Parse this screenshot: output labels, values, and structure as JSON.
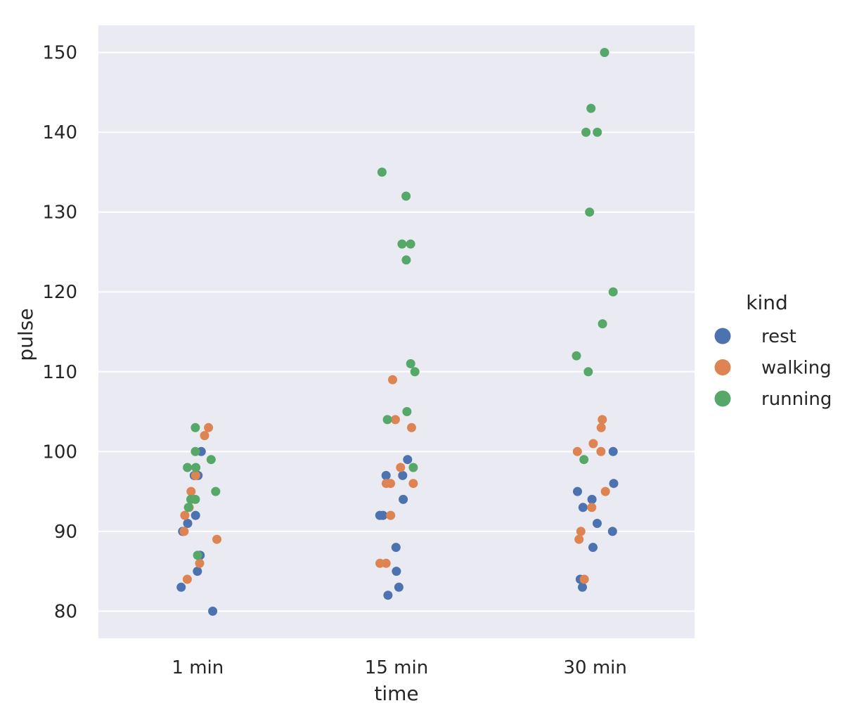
{
  "chart_data": {
    "type": "scatter",
    "title": "",
    "xlabel": "time",
    "ylabel": "pulse",
    "categories": [
      "1 min",
      "15 min",
      "30 min"
    ],
    "yticks": [
      80,
      90,
      100,
      110,
      120,
      130,
      140,
      150
    ],
    "ylim": [
      76.6,
      153.4
    ],
    "grid": true,
    "legend": {
      "title": "kind",
      "placement": "right"
    },
    "series": [
      {
        "name": "rest",
        "color": "#4c72b0",
        "points": [
          {
            "x": "1 min",
            "y": 85
          },
          {
            "x": "1 min",
            "y": 87
          },
          {
            "x": "1 min",
            "y": 90
          },
          {
            "x": "1 min",
            "y": 91
          },
          {
            "x": "1 min",
            "y": 92
          },
          {
            "x": "1 min",
            "y": 97
          },
          {
            "x": "1 min",
            "y": 83
          },
          {
            "x": "1 min",
            "y": 80
          },
          {
            "x": "1 min",
            "y": 100
          },
          {
            "x": "1 min",
            "y": 97
          },
          {
            "x": "15 min",
            "y": 82
          },
          {
            "x": "15 min",
            "y": 99
          },
          {
            "x": "15 min",
            "y": 97
          },
          {
            "x": "15 min",
            "y": 92
          },
          {
            "x": "15 min",
            "y": 85
          },
          {
            "x": "15 min",
            "y": 97
          },
          {
            "x": "15 min",
            "y": 94
          },
          {
            "x": "15 min",
            "y": 92
          },
          {
            "x": "15 min",
            "y": 83
          },
          {
            "x": "15 min",
            "y": 88
          },
          {
            "x": "30 min",
            "y": 83
          },
          {
            "x": "30 min",
            "y": 95
          },
          {
            "x": "30 min",
            "y": 90
          },
          {
            "x": "30 min",
            "y": 96
          },
          {
            "x": "30 min",
            "y": 84
          },
          {
            "x": "30 min",
            "y": 88
          },
          {
            "x": "30 min",
            "y": 100
          },
          {
            "x": "30 min",
            "y": 93
          },
          {
            "x": "30 min",
            "y": 94
          },
          {
            "x": "30 min",
            "y": 91
          }
        ]
      },
      {
        "name": "walking",
        "color": "#dd8452",
        "points": [
          {
            "x": "1 min",
            "y": 102
          },
          {
            "x": "1 min",
            "y": 93
          },
          {
            "x": "1 min",
            "y": 92
          },
          {
            "x": "1 min",
            "y": 89
          },
          {
            "x": "1 min",
            "y": 97
          },
          {
            "x": "1 min",
            "y": 84
          },
          {
            "x": "1 min",
            "y": 86
          },
          {
            "x": "1 min",
            "y": 95
          },
          {
            "x": "1 min",
            "y": 90
          },
          {
            "x": "1 min",
            "y": 103
          },
          {
            "x": "15 min",
            "y": 92
          },
          {
            "x": "15 min",
            "y": 96
          },
          {
            "x": "15 min",
            "y": 86
          },
          {
            "x": "15 min",
            "y": 96
          },
          {
            "x": "15 min",
            "y": 96
          },
          {
            "x": "15 min",
            "y": 103
          },
          {
            "x": "15 min",
            "y": 104
          },
          {
            "x": "15 min",
            "y": 86
          },
          {
            "x": "15 min",
            "y": 98
          },
          {
            "x": "15 min",
            "y": 109
          },
          {
            "x": "30 min",
            "y": 95
          },
          {
            "x": "30 min",
            "y": 103
          },
          {
            "x": "30 min",
            "y": 90
          },
          {
            "x": "30 min",
            "y": 84
          },
          {
            "x": "30 min",
            "y": 101
          },
          {
            "x": "30 min",
            "y": 89
          },
          {
            "x": "30 min",
            "y": 100
          },
          {
            "x": "30 min",
            "y": 93
          },
          {
            "x": "30 min",
            "y": 104
          },
          {
            "x": "30 min",
            "y": 100
          }
        ]
      },
      {
        "name": "running",
        "color": "#55a868",
        "points": [
          {
            "x": "1 min",
            "y": 95
          },
          {
            "x": "1 min",
            "y": 94
          },
          {
            "x": "1 min",
            "y": 100
          },
          {
            "x": "1 min",
            "y": 87
          },
          {
            "x": "1 min",
            "y": 103
          },
          {
            "x": "1 min",
            "y": 99
          },
          {
            "x": "1 min",
            "y": 98
          },
          {
            "x": "1 min",
            "y": 94
          },
          {
            "x": "1 min",
            "y": 93
          },
          {
            "x": "1 min",
            "y": 98
          },
          {
            "x": "15 min",
            "y": 132
          },
          {
            "x": "15 min",
            "y": 135
          },
          {
            "x": "15 min",
            "y": 104
          },
          {
            "x": "15 min",
            "y": 105
          },
          {
            "x": "15 min",
            "y": 126
          },
          {
            "x": "15 min",
            "y": 110
          },
          {
            "x": "15 min",
            "y": 98
          },
          {
            "x": "15 min",
            "y": 111
          },
          {
            "x": "15 min",
            "y": 124
          },
          {
            "x": "15 min",
            "y": 126
          },
          {
            "x": "30 min",
            "y": 140
          },
          {
            "x": "30 min",
            "y": 112
          },
          {
            "x": "30 min",
            "y": 110
          },
          {
            "x": "30 min",
            "y": 130
          },
          {
            "x": "30 min",
            "y": 99
          },
          {
            "x": "30 min",
            "y": 143
          },
          {
            "x": "30 min",
            "y": 116
          },
          {
            "x": "30 min",
            "y": 150
          },
          {
            "x": "30 min",
            "y": 140
          },
          {
            "x": "30 min",
            "y": 120
          }
        ]
      }
    ]
  }
}
